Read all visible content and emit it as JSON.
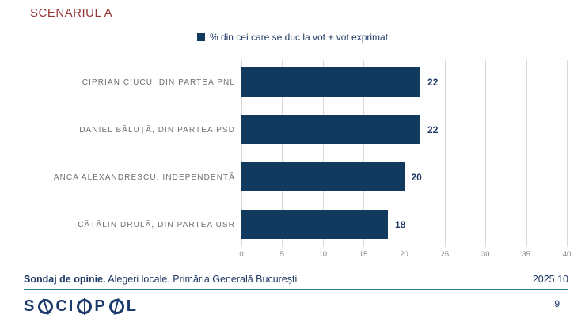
{
  "title": "SCENARIUL A",
  "legend": {
    "marker_color": "#12395E",
    "label": "% din cei care se duc la vot + vot exprimat"
  },
  "chart_data": {
    "type": "bar",
    "orientation": "horizontal",
    "title": "SCENARIUL A",
    "series_name": "% din cei care se duc la vot + vot exprimat",
    "categories": [
      "CIPRIAN CIUCU, DIN PARTEA PNL",
      "DANIEL BĂLUȚĂ, DIN PARTEA PSD",
      "ANCA ALEXANDRESCU, INDEPENDENTĂ",
      "CĂTĂLIN DRULĂ, DIN PARTEA USR"
    ],
    "values": [
      22,
      22,
      20,
      18
    ],
    "xlim": [
      0,
      40
    ],
    "xticks": [
      0,
      5,
      10,
      15,
      20,
      25,
      30,
      35,
      40
    ],
    "grid": true,
    "legend_position": "top",
    "bar_color": "#12395E",
    "value_label_color": "#1F3864"
  },
  "footer": {
    "source_bold": "Sondaj de opinie.",
    "source_rest": " Alegeri locale. Primăria Generală București",
    "date": "2025 10",
    "logo_text": "SOCIOPOL",
    "page_number": "9"
  },
  "colors": {
    "title": "#953735",
    "bar": "#12395E",
    "navy_text": "#1F3864",
    "category_label": "#6E6E6E",
    "axis_tick": "#808080",
    "gridline": "#D9D9D9",
    "footer_rule": "#2E7D9A",
    "logo": "#1C3A6B"
  }
}
